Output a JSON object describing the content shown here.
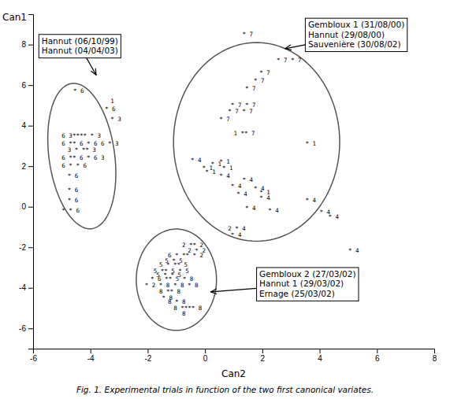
{
  "chart_data": {
    "type": "scatter",
    "marker": "text",
    "grid": false,
    "title": "Fig. 1. Experimental trials in function of the two first canonical variates.",
    "x_label": "Can2",
    "y_label": "Can1",
    "xlim": [
      -6,
      8
    ],
    "ylim": [
      -7,
      9.5
    ],
    "xticks": [
      -6,
      -4,
      -2,
      0,
      2,
      4,
      6,
      8
    ],
    "yticks": [
      -6,
      -4,
      -2,
      0,
      2,
      4,
      6,
      8
    ],
    "series": [
      {
        "x": [
          -4.6,
          -3.3,
          -3.5,
          -3.3,
          -5.0,
          -5.0,
          -4.8,
          -5.0,
          -5.0,
          -4.8,
          -4.8,
          -4.8,
          -5.0
        ],
        "values": [
          5.7,
          5.2,
          4.8,
          4.3,
          3.5,
          3.1,
          2.8,
          2.4,
          2.0,
          1.5,
          0.8,
          0.3,
          -0.2
        ],
        "labels": [
          "* 6",
          "1",
          "* 6",
          "* 3",
          "6 3****  * 3",
          "6 ** 6 * 6 6  * 3",
          "3 *  **  3",
          "6 **  6 * 6 3",
          "6 * * 6",
          "* 6",
          "* 6",
          "* 6",
          "* * 6"
        ]
      },
      {
        "x": [
          1.3,
          2.5,
          1.9,
          1.7,
          1.4,
          0.9,
          0.8,
          0.5,
          1.0,
          3.5,
          0.5,
          0.6
        ],
        "values": [
          8.5,
          7.2,
          6.6,
          6.2,
          5.8,
          5.0,
          4.7,
          4.3,
          3.6,
          3.1,
          2.2,
          1.9
        ],
        "labels": [
          "* 7",
          "* 7 * 7",
          "* 7",
          "* 7",
          "* 7",
          "* 7      * 7",
          "* 7  * 7",
          "* 7",
          "1 **  7",
          "* 1",
          "* 1",
          "* 1"
        ]
      },
      {
        "x": [
          -0.5,
          0.2,
          -0.1,
          0.0,
          0.5,
          1.3,
          0.9,
          1.7,
          1.9,
          1.1,
          1.9,
          3.5,
          1.4,
          2.2,
          4.0,
          4.3,
          0.8,
          0.9,
          5.0
        ],
        "values": [
          2.3,
          2.1,
          1.9,
          1.7,
          1.5,
          1.3,
          1.0,
          0.9,
          0.7,
          0.6,
          0.4,
          0.3,
          -0.1,
          -0.2,
          -0.3,
          -0.5,
          -1.1,
          -1.4,
          -2.2
        ],
        "labels": [
          "* 4",
          "* 1",
          "* 1",
          "* 1",
          "* 4",
          "* 4",
          "* 4",
          "* 4",
          "* 1",
          "* 4",
          "* 4",
          "* 4",
          "* 4",
          "* 4",
          "* 4",
          "* 4",
          "2 * 4",
          "* 4",
          "* 4"
        ]
      },
      {
        "x": [
          -0.8,
          -0.6,
          -1.3,
          -1.4,
          -1.6,
          -1.8,
          -1.7,
          -1.9,
          -2.1,
          -1.6,
          -1.5,
          -1.3,
          -1.1,
          -0.8
        ],
        "values": [
          -1.9,
          -2.2,
          -2.4,
          -2.7,
          -2.9,
          -3.2,
          -3.4,
          -3.6,
          -3.9,
          -4.2,
          -4.5,
          -4.7,
          -5.0,
          -5.3
        ],
        "labels": [
          "2 **  2",
          "2 *  2",
          "6 *  **  * 2",
          "5 * 5",
          "5 *  **  5",
          "5 **  5  * 5",
          "5 *  * 5",
          "* 6 **  5  * 8",
          "* 2  *  8 * 8 * 8",
          "8 **  8",
          "* 8",
          "8 * 8",
          "8 ****  8",
          "8"
        ]
      }
    ],
    "ellipses": [
      {
        "cx": -4.3,
        "cy": 2.5,
        "width": 2.3,
        "height": 7.2,
        "angle": 5
      },
      {
        "cx": 1.8,
        "cy": 3.2,
        "width": 5.8,
        "height": 9.8,
        "angle": 0
      },
      {
        "cx": -1.0,
        "cy": -3.6,
        "width": 2.8,
        "height": 5.0,
        "angle": 0
      }
    ],
    "annotations": [
      {
        "text": [
          "Hannut (06/10/99)",
          "Hannut (04/04/03)"
        ],
        "xy": [
          -3.8,
          6.5
        ],
        "xytext": [
          -5.8,
          8.5
        ]
      },
      {
        "text": [
          "Gembloux 1 (31/08/00)",
          "Hannut (29/08/00)",
          "Sauvenière (30/08/02)"
        ],
        "xy": [
          2.8,
          7.8
        ],
        "xytext": [
          3.5,
          9.3
        ]
      },
      {
        "text": [
          "Gembloux 2 (27/03/02)",
          "Hannut 1 (29/03/02)",
          "Ernage (25/03/02)"
        ],
        "xy": [
          0.2,
          -4.2
        ],
        "xytext": [
          1.8,
          -3.0
        ]
      }
    ]
  }
}
